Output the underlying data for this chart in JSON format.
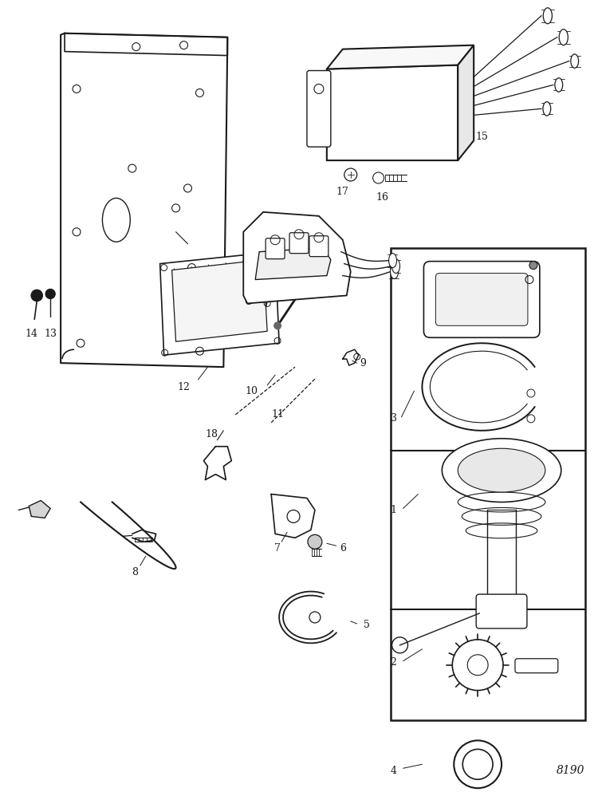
{
  "bg_color": "#ffffff",
  "lc": "#1a1a1a",
  "diagram_number": "8190",
  "figsize": [
    7.5,
    9.93
  ],
  "dpi": 100
}
